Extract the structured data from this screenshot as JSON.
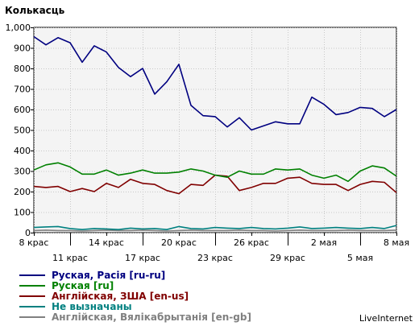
{
  "chart_data": {
    "type": "line",
    "title": "Колькасць",
    "xlabel": "",
    "ylabel": "",
    "ylim": [
      0,
      1000
    ],
    "yticks": [
      0,
      100,
      200,
      300,
      400,
      500,
      600,
      700,
      800,
      900,
      1000
    ],
    "ytick_labels": [
      "0",
      "100",
      "200",
      "300",
      "400",
      "500",
      "600",
      "700",
      "800",
      "900",
      "1,000"
    ],
    "x_ticks": [
      {
        "index": 0,
        "label": "8 крас",
        "row": 1
      },
      {
        "index": 3,
        "label": "11 крас",
        "row": 2
      },
      {
        "index": 6,
        "label": "14 крас",
        "row": 1
      },
      {
        "index": 9,
        "label": "17 крас",
        "row": 2
      },
      {
        "index": 12,
        "label": "20 крас",
        "row": 1
      },
      {
        "index": 15,
        "label": "23 крас",
        "row": 2
      },
      {
        "index": 18,
        "label": "26 крас",
        "row": 1
      },
      {
        "index": 21,
        "label": "29 крас",
        "row": 2
      },
      {
        "index": 24,
        "label": "2 мая",
        "row": 1
      },
      {
        "index": 27,
        "label": "5 мая",
        "row": 2
      },
      {
        "index": 30,
        "label": "8 мая",
        "row": 1
      }
    ],
    "grid": true,
    "legend_position": "bottom-left",
    "series": [
      {
        "name": "Руская, Расія [ru-ru]",
        "color": "#000080",
        "values": [
          955,
          915,
          950,
          925,
          830,
          910,
          880,
          805,
          760,
          800,
          675,
          735,
          820,
          620,
          570,
          565,
          515,
          560,
          500,
          520,
          540,
          530,
          530,
          660,
          625,
          575,
          585,
          610,
          605,
          565,
          600
        ]
      },
      {
        "name": "Руская [ru]",
        "color": "#008000",
        "values": [
          305,
          330,
          340,
          320,
          285,
          285,
          305,
          280,
          290,
          305,
          290,
          290,
          295,
          310,
          300,
          280,
          270,
          300,
          285,
          285,
          310,
          305,
          310,
          280,
          265,
          280,
          250,
          300,
          325,
          315,
          275
        ]
      },
      {
        "name": "Англійская, ЗША [en-us]",
        "color": "#800000",
        "values": [
          225,
          220,
          225,
          200,
          215,
          200,
          240,
          220,
          260,
          240,
          235,
          205,
          190,
          235,
          230,
          280,
          275,
          205,
          220,
          240,
          240,
          265,
          270,
          240,
          235,
          235,
          205,
          235,
          250,
          245,
          195
        ]
      },
      {
        "name": "Не вызначаны",
        "color": "#008080",
        "values": [
          25,
          28,
          30,
          20,
          15,
          20,
          18,
          15,
          22,
          18,
          20,
          15,
          30,
          20,
          18,
          25,
          22,
          20,
          25,
          20,
          18,
          22,
          28,
          20,
          22,
          25,
          22,
          20,
          25,
          20,
          35
        ]
      },
      {
        "name": "Англійская, Вялікабрытанія [en-gb]",
        "color": "#808080",
        "values": [
          10,
          12,
          10,
          10,
          8,
          10,
          12,
          10,
          10,
          12,
          10,
          8,
          10,
          12,
          10,
          10,
          10,
          12,
          10,
          10,
          8,
          10,
          12,
          10,
          10,
          10,
          12,
          10,
          10,
          10,
          12
        ]
      }
    ]
  },
  "credit": "LiveInternet"
}
